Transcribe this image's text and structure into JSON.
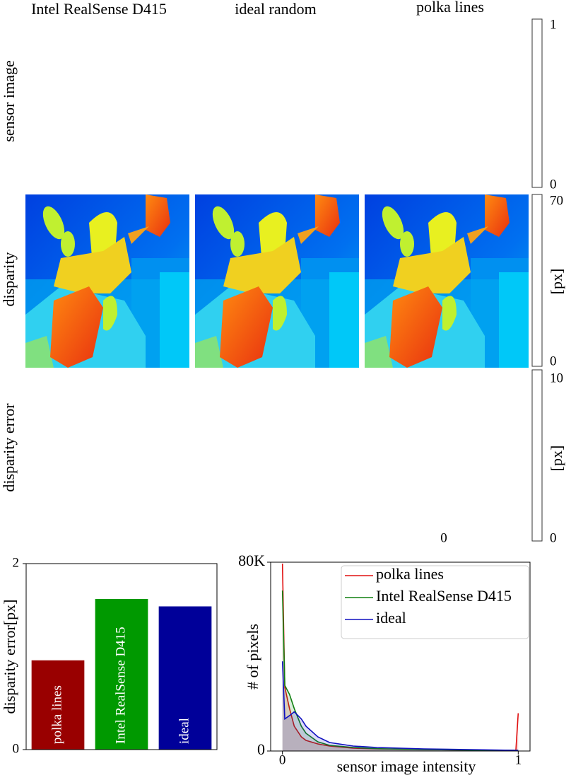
{
  "figure": {
    "columns": [
      "Intel RealSense D415",
      "ideal random",
      "polka lines"
    ],
    "rows": [
      "sensor image",
      "disparity",
      "disparity error"
    ],
    "colorbars": [
      {
        "ticks": [
          "1",
          "0"
        ]
      },
      {
        "ticks": [
          "70",
          "0"
        ],
        "label": "[px]"
      },
      {
        "ticks": [
          "10",
          "0"
        ],
        "label": "[px]"
      }
    ],
    "stray_label": "0"
  },
  "chart_data": [
    {
      "type": "bar",
      "ylabel": "disparity error[px]",
      "categories": [
        "polka lines",
        "Intel RealSense D415",
        "ideal"
      ],
      "values": [
        0.96,
        1.62,
        1.54
      ],
      "colors": [
        "#990000",
        "#009900",
        "#000099"
      ],
      "ylim": [
        0,
        2
      ],
      "yticks": [
        0,
        2
      ]
    },
    {
      "type": "line",
      "xlabel": "sensor image intensity",
      "ylabel": "# of pixels",
      "x": [
        0,
        0.01,
        0.03,
        0.05,
        0.08,
        0.1,
        0.15,
        0.2,
        0.3,
        0.4,
        0.6,
        0.8,
        0.99,
        1.0
      ],
      "series": [
        {
          "name": "polka lines",
          "color": "#e01010",
          "values": [
            79400,
            27000,
            18000,
            10500,
            6000,
            4500,
            3000,
            2100,
            1200,
            900,
            600,
            400,
            300,
            16000
          ]
        },
        {
          "name": "Intel RealSense D415",
          "color": "#108010",
          "values": [
            68000,
            27800,
            24000,
            18000,
            10500,
            7500,
            3900,
            2400,
            1500,
            1000,
            600,
            400,
            300,
            300
          ]
        },
        {
          "name": "ideal",
          "color": "#1010c0",
          "values": [
            38000,
            13600,
            15000,
            16600,
            13600,
            10500,
            6000,
            3600,
            2100,
            1500,
            900,
            600,
            300,
            300
          ]
        }
      ],
      "xlim": [
        -0.05,
        1.05
      ],
      "ylim": [
        0,
        80000
      ],
      "xticks": [
        0,
        1
      ],
      "yticks": [
        0,
        {
          "value": 80000,
          "label": "80K"
        }
      ],
      "legend": "upper right"
    }
  ]
}
